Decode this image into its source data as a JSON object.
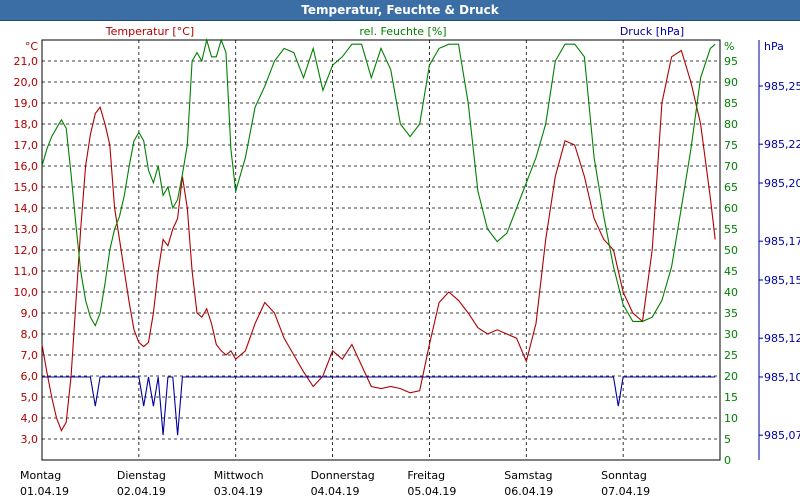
{
  "chart_data": {
    "type": "line",
    "title": "Temperatur, Feuchte & Druck",
    "colors": {
      "temperature": "#b00000",
      "humidity": "#008000",
      "pressure": "#0000a0",
      "title_bar": "#3a6ea5"
    },
    "axes": {
      "left": {
        "unit": "°C",
        "label": "Temperatur [°C]",
        "range": [
          2.0,
          22.0
        ],
        "ticks": [
          "3,0",
          "4,0",
          "5,0",
          "6,0",
          "7,0",
          "8,0",
          "9,0",
          "10,0",
          "11,0",
          "12,0",
          "13,0",
          "14,0",
          "15,0",
          "16,0",
          "17,0",
          "18,0",
          "19,0",
          "20,0",
          "21,0"
        ]
      },
      "right_humidity": {
        "unit": "%",
        "label": "rel. Feuchte [%]",
        "range": [
          0,
          100
        ],
        "ticks": [
          "0",
          "5",
          "10",
          "15",
          "20",
          "25",
          "30",
          "35",
          "40",
          "45",
          "50",
          "55",
          "60",
          "65",
          "70",
          "75",
          "80",
          "85",
          "90",
          "95"
        ]
      },
      "right_pressure": {
        "unit": "hPa",
        "label": "Druck [hPa]",
        "ticks": [
          "985,07",
          "985,10",
          "985,12",
          "985,15",
          "985,17",
          "985,20",
          "985,22",
          "985,25"
        ]
      }
    },
    "x_labels": [
      {
        "day": "Montag",
        "date": "01.04.19"
      },
      {
        "day": "Dienstag",
        "date": "02.04.19"
      },
      {
        "day": "Mittwoch",
        "date": "03.04.19"
      },
      {
        "day": "Donnerstag",
        "date": "04.04.19"
      },
      {
        "day": "Freitag",
        "date": "05.04.19"
      },
      {
        "day": "Samstag",
        "date": "06.04.19"
      },
      {
        "day": "Sonntag",
        "date": "07.04.19"
      }
    ],
    "grid": true,
    "series": [
      {
        "name": "Temperatur [°C]",
        "axis": "left",
        "x": [
          0,
          0.05,
          0.1,
          0.15,
          0.2,
          0.25,
          0.3,
          0.35,
          0.4,
          0.45,
          0.5,
          0.55,
          0.6,
          0.65,
          0.7,
          0.75,
          0.8,
          0.85,
          0.9,
          0.95,
          1.0,
          1.05,
          1.1,
          1.15,
          1.2,
          1.25,
          1.3,
          1.35,
          1.4,
          1.45,
          1.5,
          1.55,
          1.6,
          1.65,
          1.7,
          1.75,
          1.8,
          1.85,
          1.9,
          1.95,
          2.0,
          2.1,
          2.2,
          2.3,
          2.4,
          2.5,
          2.6,
          2.7,
          2.8,
          2.9,
          3.0,
          3.1,
          3.2,
          3.3,
          3.4,
          3.5,
          3.6,
          3.7,
          3.8,
          3.9,
          4.0,
          4.1,
          4.2,
          4.3,
          4.4,
          4.5,
          4.6,
          4.7,
          4.8,
          4.9,
          5.0,
          5.1,
          5.2,
          5.3,
          5.4,
          5.5,
          5.6,
          5.7,
          5.8,
          5.9,
          6.0,
          6.1,
          6.2,
          6.3,
          6.4,
          6.5,
          6.6,
          6.7,
          6.8,
          6.9,
          6.95
        ],
        "values": [
          7.5,
          6.2,
          5.0,
          4.0,
          3.4,
          3.8,
          6.0,
          9.5,
          13.0,
          16.0,
          17.5,
          18.5,
          18.8,
          18.0,
          17.0,
          14.0,
          12.5,
          11.0,
          9.5,
          8.2,
          7.6,
          7.4,
          7.6,
          9.0,
          11.0,
          12.5,
          12.2,
          13.0,
          13.5,
          15.5,
          14.0,
          11.0,
          9.0,
          8.8,
          9.2,
          8.5,
          7.5,
          7.2,
          7.0,
          7.2,
          6.8,
          7.2,
          8.5,
          9.5,
          9.0,
          7.8,
          7.0,
          6.2,
          5.5,
          6.0,
          7.2,
          6.8,
          7.5,
          6.5,
          5.5,
          5.4,
          5.5,
          5.4,
          5.2,
          5.3,
          7.5,
          9.5,
          10.0,
          9.6,
          9.0,
          8.3,
          8.0,
          8.2,
          8.0,
          7.8,
          6.7,
          8.5,
          12.5,
          15.5,
          17.2,
          17.0,
          15.5,
          13.5,
          12.5,
          12.0,
          10.0,
          9.0,
          8.6,
          12.0,
          19.0,
          21.2,
          21.5,
          20.0,
          18.0,
          14.5,
          12.5
        ]
      },
      {
        "name": "rel. Feuchte [%]",
        "axis": "right_humidity",
        "x": [
          0,
          0.05,
          0.1,
          0.15,
          0.2,
          0.25,
          0.3,
          0.35,
          0.4,
          0.45,
          0.5,
          0.55,
          0.6,
          0.65,
          0.7,
          0.75,
          0.8,
          0.85,
          0.9,
          0.95,
          1.0,
          1.05,
          1.1,
          1.15,
          1.2,
          1.25,
          1.3,
          1.35,
          1.4,
          1.45,
          1.5,
          1.55,
          1.6,
          1.65,
          1.7,
          1.75,
          1.8,
          1.85,
          1.9,
          1.95,
          2.0,
          2.1,
          2.2,
          2.3,
          2.4,
          2.5,
          2.6,
          2.7,
          2.8,
          2.9,
          3.0,
          3.1,
          3.2,
          3.3,
          3.4,
          3.5,
          3.6,
          3.7,
          3.8,
          3.9,
          4.0,
          4.1,
          4.2,
          4.3,
          4.4,
          4.5,
          4.6,
          4.7,
          4.8,
          4.9,
          5.0,
          5.1,
          5.2,
          5.3,
          5.4,
          5.5,
          5.6,
          5.7,
          5.8,
          5.9,
          6.0,
          6.1,
          6.2,
          6.3,
          6.4,
          6.5,
          6.6,
          6.7,
          6.8,
          6.9,
          6.95
        ],
        "values": [
          70,
          74,
          77,
          79,
          81,
          79,
          68,
          56,
          45,
          38,
          34,
          32,
          35,
          42,
          50,
          55,
          58,
          63,
          70,
          76,
          78,
          76,
          69,
          66,
          70,
          63,
          65,
          60,
          62,
          68,
          75,
          95,
          97,
          95,
          100,
          96,
          96,
          100,
          97,
          74,
          64,
          72,
          84,
          89,
          95,
          98,
          97,
          91,
          98,
          88,
          94,
          96,
          99,
          99,
          91,
          98,
          93,
          80,
          77,
          80,
          94,
          98,
          99,
          99,
          85,
          64,
          55,
          52,
          54,
          60,
          66,
          72,
          80,
          95,
          99,
          99,
          96,
          72,
          58,
          46,
          37,
          33,
          33,
          34,
          38,
          46,
          60,
          74,
          91,
          98,
          99
        ]
      },
      {
        "name": "Druck [hPa]",
        "axis": "right_pressure",
        "x": [
          0,
          0.5,
          0.55,
          0.6,
          0.65,
          1.0,
          1.05,
          1.1,
          1.15,
          1.2,
          1.25,
          1.3,
          1.35,
          1.4,
          1.45,
          1.5,
          1.55,
          1.6,
          1.65,
          1.7,
          5.9,
          5.95,
          6.0,
          6.05,
          6.95
        ],
        "values": [
          985.1,
          985.1,
          985.085,
          985.1,
          985.1,
          985.1,
          985.085,
          985.1,
          985.085,
          985.1,
          985.07,
          985.1,
          985.1,
          985.07,
          985.1,
          985.1,
          985.1,
          985.1,
          985.1,
          985.1,
          985.1,
          985.085,
          985.1,
          985.1,
          985.1
        ]
      }
    ]
  }
}
